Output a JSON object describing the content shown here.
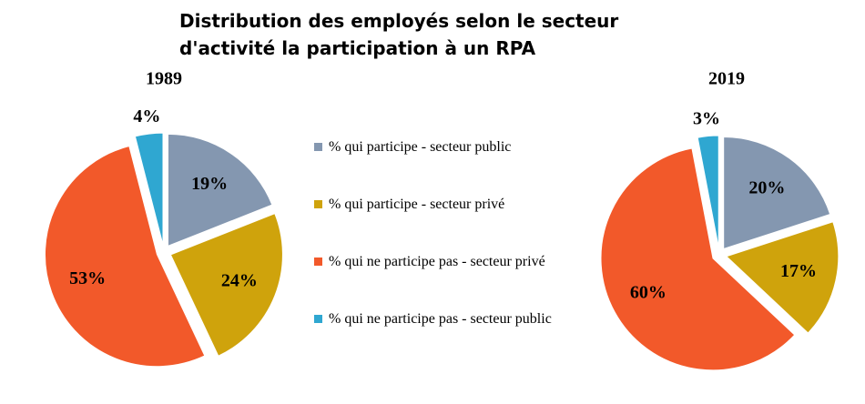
{
  "title": "Distribution des employés selon le secteur d'activité la participation à un RPA",
  "legend": [
    {
      "label": "% qui participe - secteur public",
      "color": "#8497b0"
    },
    {
      "label": "% qui participe - secteur privé",
      "color": "#cfa30c"
    },
    {
      "label": "% qui ne participe pas - secteur privé",
      "color": "#f2592a"
    },
    {
      "label": "% qui ne participe pas - secteur public",
      "color": "#2fa7d1"
    }
  ],
  "chart_data": [
    {
      "type": "pie",
      "title": "1989",
      "values": [
        19,
        24,
        53,
        4
      ],
      "value_labels": [
        "19%",
        "24%",
        "53%",
        "4%"
      ]
    },
    {
      "type": "pie",
      "title": "2019",
      "values": [
        20,
        17,
        60,
        3
      ],
      "value_labels": [
        "20%",
        "17%",
        "60%",
        "3%"
      ]
    }
  ]
}
